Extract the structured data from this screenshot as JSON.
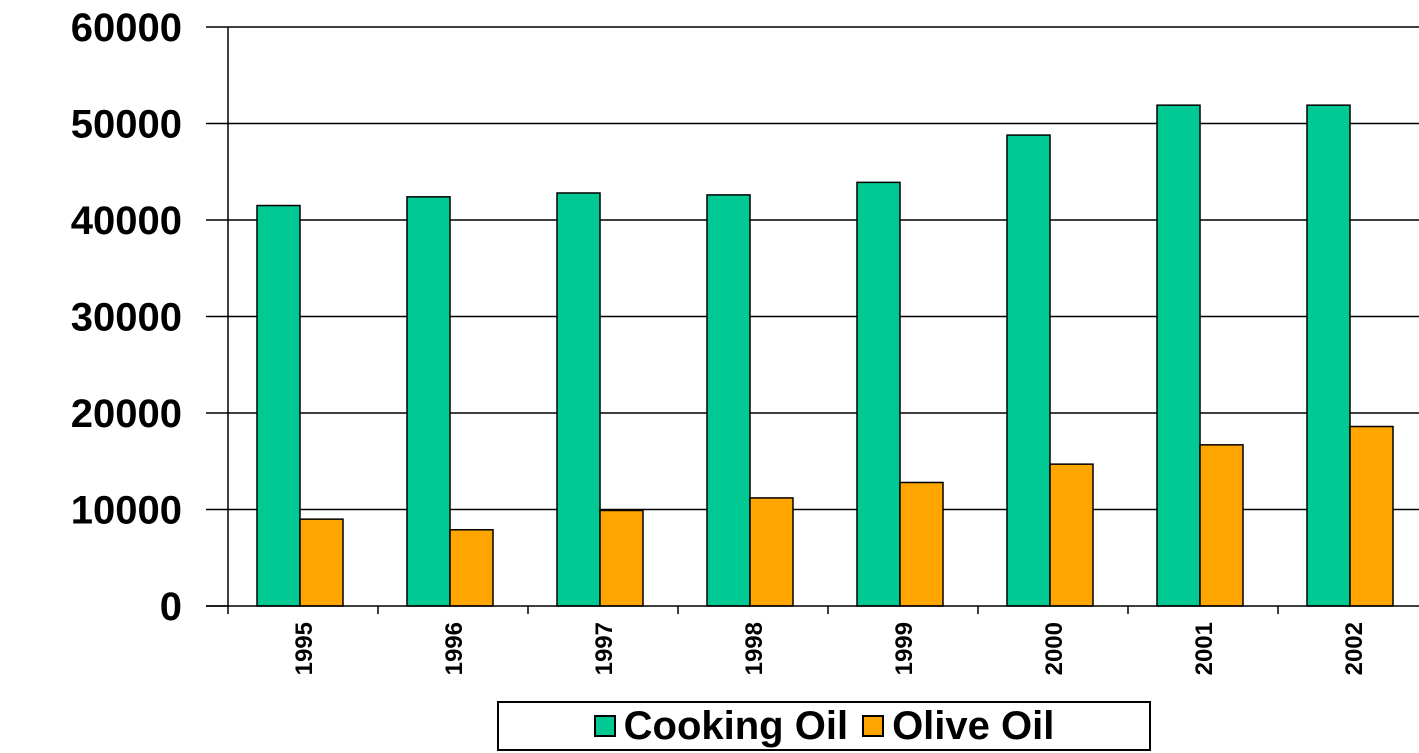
{
  "chart_data": {
    "type": "bar",
    "categories": [
      "1995",
      "1996",
      "1997",
      "1998",
      "1999",
      "2000",
      "2001",
      "2002"
    ],
    "series": [
      {
        "name": "Cooking Oil",
        "color": "#00C994",
        "values": [
          41500,
          42400,
          42800,
          42600,
          43900,
          48800,
          51900,
          51900
        ]
      },
      {
        "name": "Olive Oil",
        "color": "#FFA500",
        "values": [
          9000,
          7900,
          9900,
          11200,
          12800,
          14700,
          16700,
          18600
        ]
      }
    ],
    "yticks": [
      "0",
      "10000",
      "20000",
      "30000",
      "40000",
      "50000",
      "60000"
    ],
    "ylim": [
      0,
      60000
    ],
    "grid": true,
    "legend_position": "bottom",
    "xlabel": "",
    "ylabel": "",
    "title": ""
  }
}
